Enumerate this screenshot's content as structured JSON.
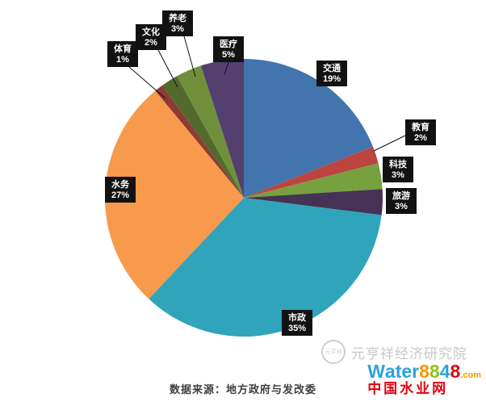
{
  "chart_data": {
    "type": "pie",
    "title": "",
    "direction": "clockwise",
    "start_angle_deg": 0,
    "center": [
      302,
      245
    ],
    "radius": 172,
    "value_suffix": "%",
    "categories": [
      "交通",
      "教育",
      "科技",
      "旅游",
      "市政",
      "水务",
      "体育",
      "文化",
      "养老",
      "医疗"
    ],
    "values": [
      19,
      2,
      3,
      3,
      35,
      27,
      1,
      2,
      3,
      5
    ],
    "slices": [
      {
        "label": "交通",
        "value": 19,
        "color": "#4274ae",
        "label_box": [
          411,
          91
        ]
      },
      {
        "label": "教育",
        "value": 2,
        "color": "#bc4540",
        "label_box": [
          521,
          164
        ],
        "leader": [
          502,
          168,
          463,
          187
        ]
      },
      {
        "label": "科技",
        "value": 3,
        "color": "#77a13e",
        "label_box": [
          493,
          210
        ]
      },
      {
        "label": "旅游",
        "value": 3,
        "color": "#443355",
        "label_box": [
          497,
          249
        ]
      },
      {
        "label": "市政",
        "value": 35,
        "color": "#2fa4ba",
        "label_box": [
          368,
          400
        ]
      },
      {
        "label": "水务",
        "value": 27,
        "color": "#f79a4b",
        "label_box": [
          149,
          235
        ]
      },
      {
        "label": "体育",
        "value": 1,
        "color": "#8e3a35",
        "label_box": [
          152,
          67
        ],
        "leader": [
          160,
          83,
          205,
          122
        ]
      },
      {
        "label": "文化",
        "value": 2,
        "color": "#526b2d",
        "label_box": [
          187,
          46
        ],
        "leader": [
          196,
          62,
          220,
          108
        ]
      },
      {
        "label": "养老",
        "value": 3,
        "color": "#708f3b",
        "label_box": [
          220,
          29
        ],
        "leader": [
          228,
          45,
          242,
          95
        ]
      },
      {
        "label": "医疗",
        "value": 5,
        "color": "#53406e",
        "label_box": [
          283,
          61
        ],
        "leader": [
          283,
          77,
          278,
          92
        ]
      }
    ],
    "label_box_style": {
      "fill": "#121212",
      "text_color": "#ffffff"
    }
  },
  "caption": "数据来源：地方政府与发改委",
  "watermark": {
    "seal_text": "元亨祥",
    "text": "元亨祥经济研究院"
  },
  "logo": {
    "letters": [
      {
        "ch": "W",
        "color": "#2aa3dc"
      },
      {
        "ch": "a",
        "color": "#2aa3dc"
      },
      {
        "ch": "t",
        "color": "#2aa3dc"
      },
      {
        "ch": "e",
        "color": "#2aa3dc"
      },
      {
        "ch": "r",
        "color": "#2aa3dc"
      },
      {
        "ch": "8",
        "color": "#f39800"
      },
      {
        "ch": "8",
        "color": "#8fc31f"
      },
      {
        "ch": "4",
        "color": "#2aa3dc"
      },
      {
        "ch": "8",
        "color": "#e60012"
      },
      {
        "ch": ".com",
        "color": "#f39800",
        "small": true
      }
    ],
    "subtitle": "中国水业网",
    "subtitle_color": "#e60012"
  }
}
